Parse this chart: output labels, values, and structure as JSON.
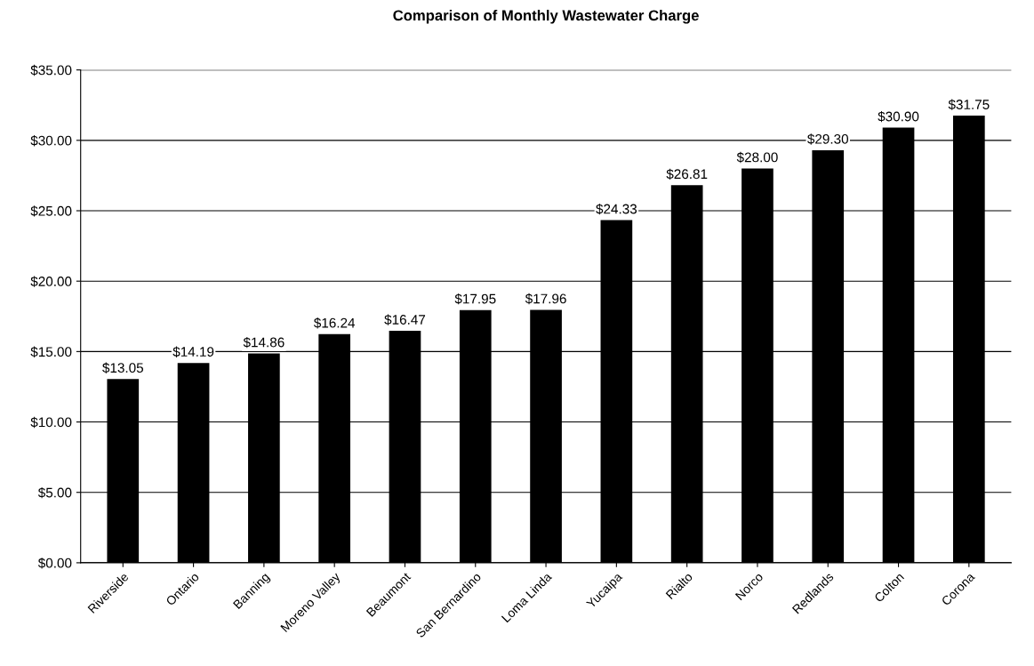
{
  "chart_data": {
    "type": "bar",
    "title": "Comparison of Monthly Wastewater Charge",
    "categories": [
      "Riverside",
      "Ontario",
      "Banning",
      "Moreno Valley",
      "Beaumont",
      "San Bernardino",
      "Loma Linda",
      "Yucaipa",
      "Rialto",
      "Norco",
      "Redlands",
      "Colton",
      "Corona"
    ],
    "values": [
      13.05,
      14.19,
      14.86,
      16.24,
      16.47,
      17.95,
      17.96,
      24.33,
      26.81,
      28.0,
      29.3,
      30.9,
      31.75
    ],
    "value_labels": [
      "$13.05",
      "$14.19",
      "$14.86",
      "$16.24",
      "$16.47",
      "$17.95",
      "$17.96",
      "$24.33",
      "$26.81",
      "$28.00",
      "$29.30",
      "$30.90",
      "$31.75"
    ],
    "color": "#000000",
    "ylim": [
      0,
      35
    ],
    "yticks": [
      {
        "value": 0,
        "label": "$0.00"
      },
      {
        "value": 5,
        "label": "$5.00"
      },
      {
        "value": 10,
        "label": "$10.00"
      },
      {
        "value": 15,
        "label": "$15.00"
      },
      {
        "value": 20,
        "label": "$20.00"
      },
      {
        "value": 25,
        "label": "$25.00"
      },
      {
        "value": 30,
        "label": "$30.00"
      },
      {
        "value": 35,
        "label": "$35.00"
      }
    ],
    "grid": "y",
    "legend": false
  }
}
